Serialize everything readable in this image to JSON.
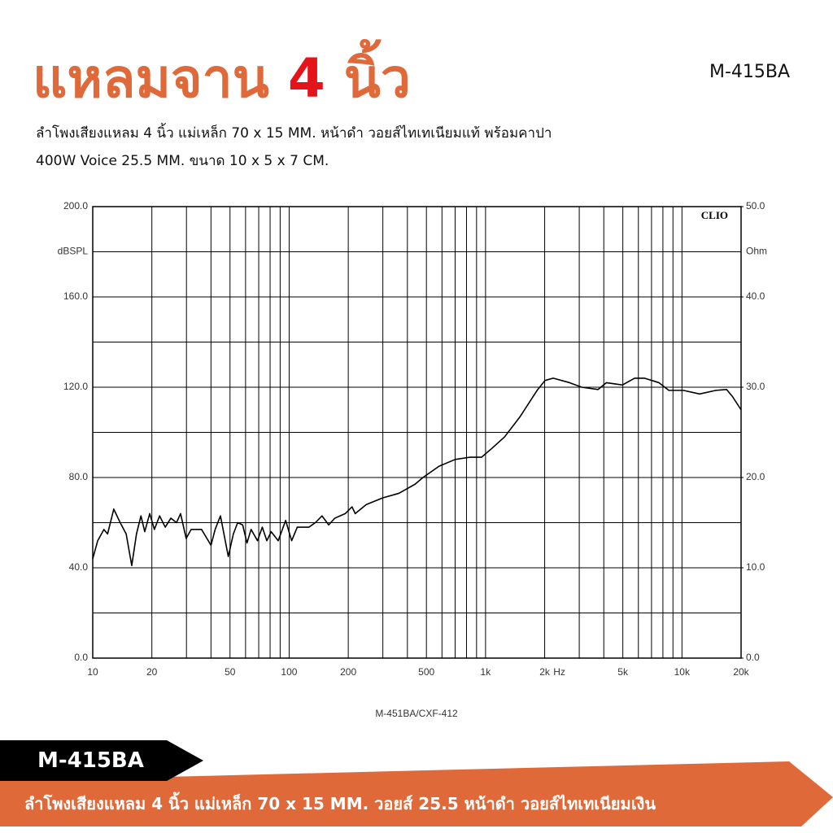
{
  "header": {
    "title_parts": [
      "แหลมจาน",
      "4",
      "นิ้ว"
    ],
    "model": "M-415BA",
    "description": [
      "ลำโพงเสียงแหลม 4 นิ้ว แม่เหล็ก 70 x 15 MM. หน้าดำ วอยส์ไทเทเนียมแท้ พร้อมคาปา",
      "400W Voice 25.5 MM. ขนาด 10 x 5 x 7 CM."
    ]
  },
  "chart_data": {
    "type": "line",
    "brand": "CLIO",
    "caption": "M-451BA/CXF-412",
    "xlabel": "Hz",
    "ylabel": "dBSPL",
    "y2label": "Ohm",
    "xscale": "log",
    "grid": true,
    "color": "#000000",
    "xlim": [
      10,
      20000
    ],
    "xticks": [
      10,
      20,
      50,
      100,
      200,
      500,
      {
        "value": 1000,
        "label": "1k"
      },
      {
        "value": 2000,
        "label": "2k"
      },
      {
        "value": 5000,
        "label": "5k"
      },
      {
        "value": 10000,
        "label": "10k"
      },
      {
        "value": 20000,
        "label": "20k"
      }
    ],
    "xminor": [
      30,
      40,
      60,
      70,
      80,
      90,
      300,
      400,
      600,
      700,
      800,
      900,
      3000,
      4000,
      6000,
      7000,
      8000,
      9000
    ],
    "ylim": [
      0,
      200
    ],
    "yticks": [
      {
        "value": 0,
        "label": "0.0"
      },
      {
        "value": 40,
        "label": "40.0"
      },
      {
        "value": 80,
        "label": "80.0"
      },
      {
        "value": 120,
        "label": "120.0"
      },
      {
        "value": 160,
        "label": "160.0"
      },
      {
        "value": 200,
        "label": "200.0"
      }
    ],
    "yminor": [
      20,
      60,
      100,
      140,
      180
    ],
    "y2lim": [
      0,
      50
    ],
    "y2ticks": [
      {
        "value": 0,
        "label": "0.0"
      },
      {
        "value": 10,
        "label": "10.0"
      },
      {
        "value": 20,
        "label": "20.0"
      },
      {
        "value": 30,
        "label": "30.0"
      },
      {
        "value": 40,
        "label": "40.0"
      },
      {
        "value": 50,
        "label": "50.0"
      }
    ],
    "x": [
      10,
      10.6,
      11.4,
      11.9,
      12.8,
      13.8,
      14.8,
      15.8,
      16.7,
      17.6,
      18.4,
      19.5,
      20.6,
      21.9,
      23.4,
      25,
      26.7,
      28,
      29.9,
      31.7,
      35.8,
      40,
      42,
      44.7,
      49,
      52,
      54.7,
      58,
      61,
      64,
      69,
      73,
      77,
      81,
      88,
      96,
      103,
      110,
      126,
      136,
      147,
      159,
      171,
      193,
      209,
      217,
      247,
      300,
      362,
      437,
      480,
      580,
      700,
      836,
      955,
      1080,
      1250,
      1500,
      1830,
      2010,
      2210,
      2680,
      3090,
      3740,
      4120,
      4980,
      5740,
      6440,
      7640,
      8570,
      10170,
      12300,
      14890,
      16870,
      18030,
      20000
    ],
    "values": [
      44,
      52,
      57,
      55,
      66,
      60,
      55,
      41,
      55,
      63,
      56,
      64,
      57,
      63,
      58,
      62,
      60,
      64,
      53,
      57,
      57,
      50,
      57,
      63,
      45,
      55,
      60,
      59,
      51,
      57,
      52,
      58,
      52,
      56,
      52,
      61,
      52,
      58,
      58,
      60,
      63,
      59,
      62,
      64,
      67,
      64,
      68,
      71,
      73,
      77,
      80,
      85,
      88,
      89,
      89,
      93,
      98,
      107,
      118.6,
      123,
      124,
      122,
      120,
      119,
      122,
      121,
      124,
      124,
      122,
      118.6,
      118.6,
      117,
      118.6,
      119,
      116,
      110
    ]
  },
  "banner": {
    "tag": "M-415BA",
    "text": "ลำโพงเสียงแหลม 4 นิ้ว แม่เหล็ก 70 x 15 MM. วอยส์ 25.5 หน้าดำ วอยส์ไทเทเนียมเงิน"
  }
}
